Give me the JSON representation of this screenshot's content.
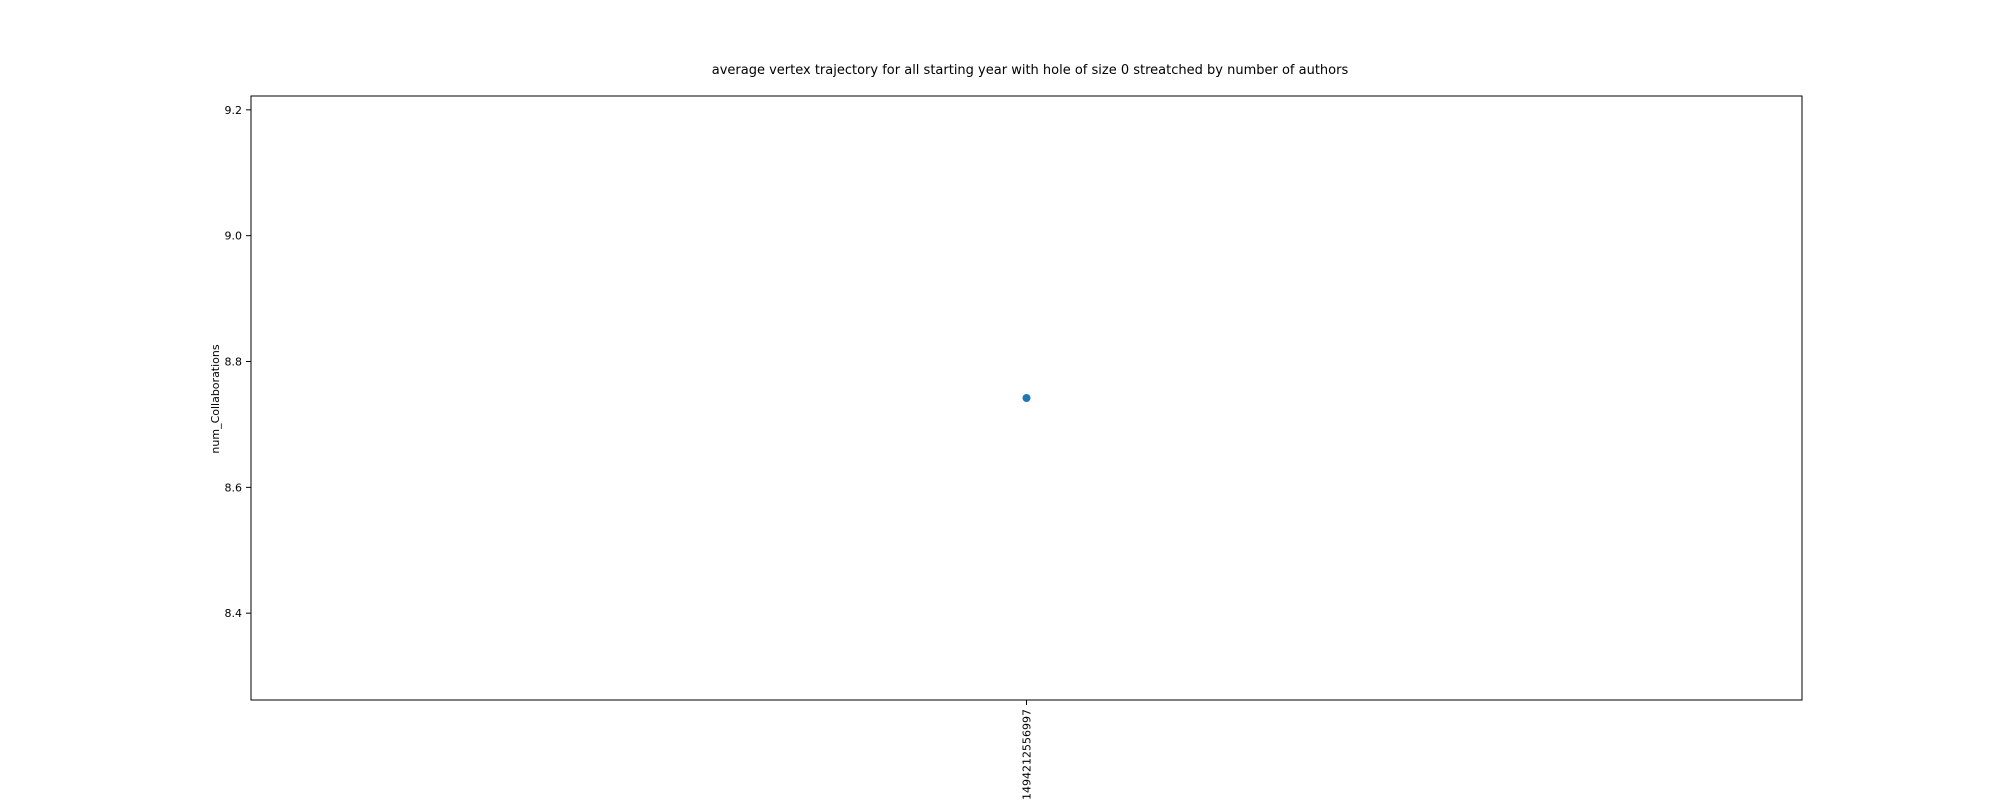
{
  "chart_data": {
    "type": "scatter",
    "title": "average vertex trajectory for all starting year with hole of size 0 streatched by number of authors",
    "xlabel": "",
    "ylabel": "num_Collaborations",
    "categories": [
      "1494212556997"
    ],
    "series": [
      {
        "values": [
          8.742
        ],
        "color": "#1f77b4"
      }
    ],
    "ylim": [
      8.262,
      9.222
    ],
    "yticks": [
      8.4,
      8.6,
      8.8,
      9.0,
      9.2
    ],
    "ytick_labels": [
      "8.4",
      "8.6",
      "8.8",
      "9.0",
      "9.2"
    ],
    "grid": false,
    "legend": "none"
  }
}
